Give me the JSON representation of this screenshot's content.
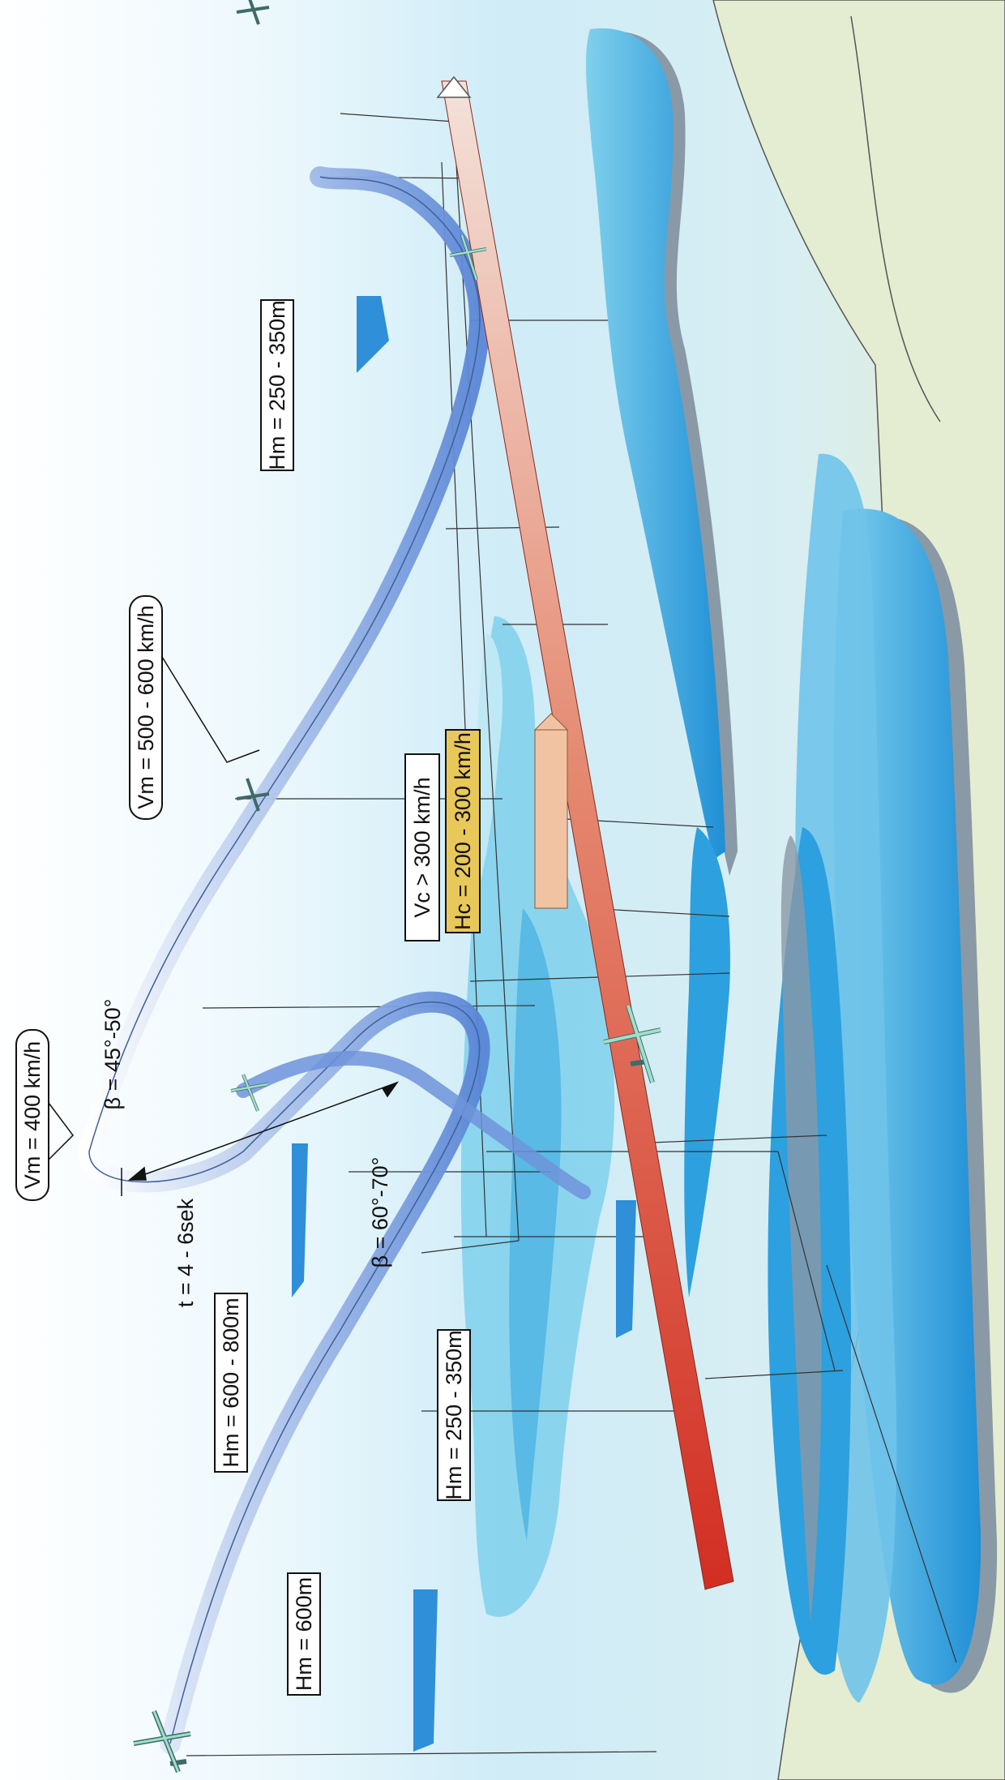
{
  "colors": {
    "sky_top": "#cfecf7",
    "sky_mid": "#e7f6fb",
    "land": "#e4ecd2",
    "cloud_fill": "#2da0df",
    "cloud_light": "#7fd0ec",
    "cloud_shadow": "#8a99a6",
    "path_blue": "#5a86d6",
    "target_red": "#d8362b",
    "tag_blue": "#2f8fd8",
    "label_peach": "#f2c3a3",
    "label_yellow": "#e9c85a",
    "aircraft": "#7fd4c9"
  },
  "labels": {
    "vm_400": "Vm = 400 km/h",
    "vm_500_600": "Vm = 500 - 600 km/h",
    "hm_250_350_top": "Hm = 250 - 350m",
    "beta_45_50": "β = 45°-50°",
    "t_4_6": "t = 4 - 6sek",
    "hm_600_800": "Hm = 600 - 800m",
    "beta_60_70": "β = 60°-70°",
    "hm_250_350_bottom": "Hm = 250 - 350m",
    "hm_600": "Hm = 600m",
    "vc_300": "Vc > 300 km/h",
    "hc_200_300": "Hc = 200 - 300 km/h"
  }
}
